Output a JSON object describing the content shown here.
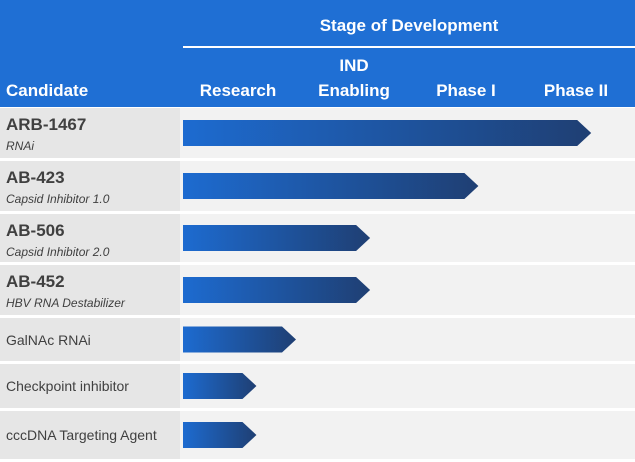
{
  "chart_data": {
    "type": "bar",
    "orientation": "horizontal",
    "title": "Stage of Development",
    "xlabel": "Stage of Development",
    "ylabel": "Candidate",
    "stages": [
      "Research",
      "IND Enabling",
      "Phase I",
      "Phase II"
    ],
    "stage_label_lines": [
      [
        "Research"
      ],
      [
        "IND",
        "Enabling"
      ],
      [
        "Phase I"
      ],
      [
        "Phase II"
      ]
    ],
    "xlim": [
      0,
      4
    ],
    "categories": [
      "ARB-1467",
      "AB-423",
      "AB-506",
      "AB-452",
      "GalNAc RNAi",
      "Checkpoint inhibitor",
      "cccDNA Targeting Agent"
    ],
    "subtitles": [
      "RNAi",
      "Capsid Inhibitor 1.0",
      "Capsid Inhibitor 2.0",
      "HBV RNA Destabilizer",
      "",
      "",
      ""
    ],
    "values": [
      3.6,
      2.6,
      1.65,
      1.65,
      1.0,
      0.65,
      0.65
    ]
  },
  "header": {
    "candidate_label": "Candidate"
  },
  "colors": {
    "header": "#1f6fd4",
    "bar_dark": "#1f3f73",
    "bar_light": "#1d6bd0",
    "row_left": "#e6e6e6",
    "row_right": "#f2f2f2"
  }
}
